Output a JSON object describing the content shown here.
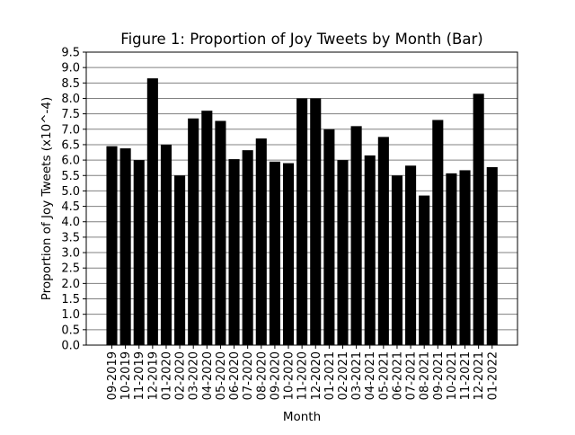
{
  "chart_data": {
    "type": "bar",
    "title": "Figure 1: Proportion of Joy Tweets by Month (Bar)",
    "xlabel": "Month",
    "ylabel": "Proportion of Joy Tweets (x10^-4)",
    "ylim": [
      0,
      9.5
    ],
    "yticks": [
      "0.0",
      "0.5",
      "1.0",
      "1.5",
      "2.0",
      "2.5",
      "3.0",
      "3.5",
      "4.0",
      "4.5",
      "5.0",
      "5.5",
      "6.0",
      "6.5",
      "7.0",
      "7.5",
      "8.0",
      "8.5",
      "9.0",
      "9.5"
    ],
    "grid": "horizontal",
    "bar_color": "#000000",
    "categories": [
      "09-2019",
      "10-2019",
      "11-2019",
      "12-2019",
      "01-2020",
      "02-2020",
      "03-2020",
      "04-2020",
      "05-2020",
      "06-2020",
      "07-2020",
      "08-2020",
      "09-2020",
      "10-2020",
      "11-2020",
      "12-2020",
      "01-2021",
      "02-2021",
      "03-2021",
      "04-2021",
      "05-2021",
      "06-2021",
      "07-2021",
      "08-2021",
      "09-2021",
      "10-2021",
      "11-2021",
      "12-2021",
      "01-2022"
    ],
    "values": [
      6.45,
      6.38,
      6.0,
      8.65,
      6.5,
      5.5,
      7.35,
      7.6,
      7.27,
      6.03,
      6.32,
      6.7,
      5.95,
      5.9,
      8.0,
      8.0,
      7.0,
      6.0,
      7.1,
      6.15,
      6.75,
      5.5,
      5.82,
      4.85,
      7.3,
      5.57,
      5.67,
      8.15,
      5.77
    ]
  }
}
